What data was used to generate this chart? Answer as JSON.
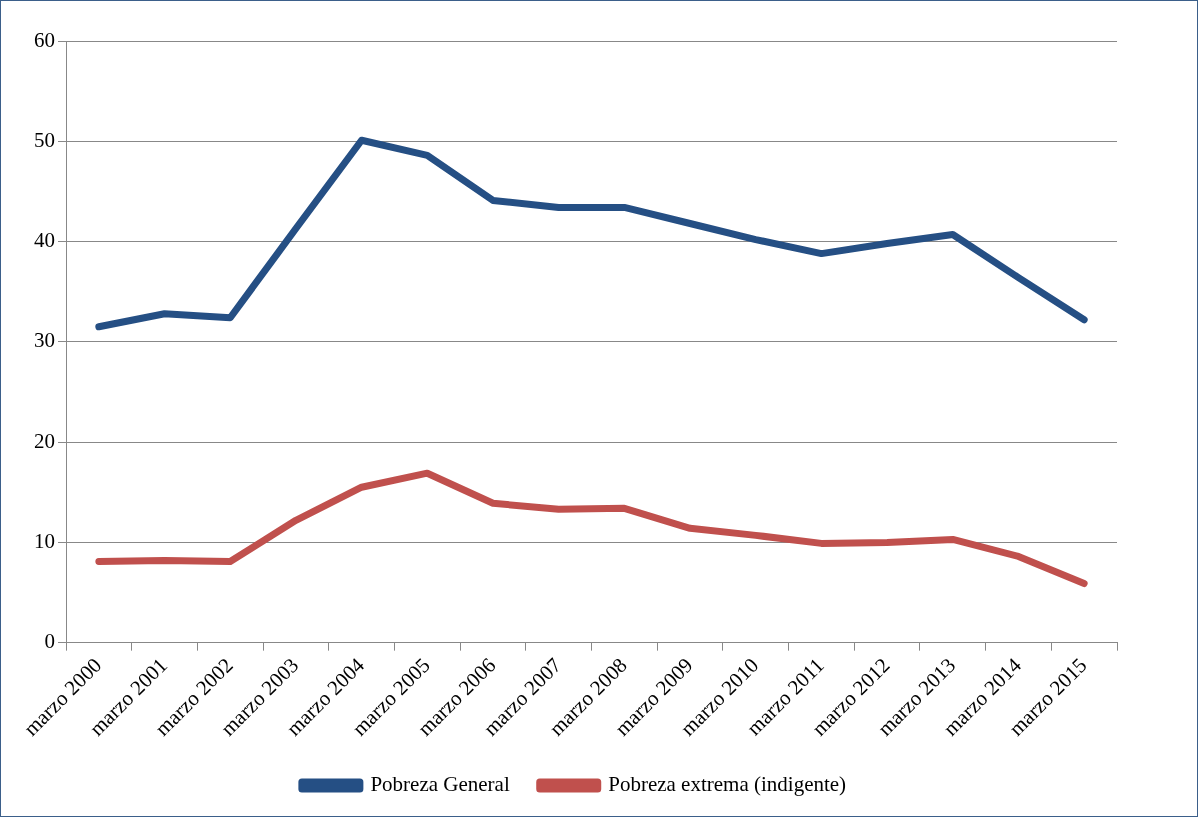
{
  "chart_data": {
    "type": "line",
    "categories": [
      "marzo 2000",
      "marzo 2001",
      "marzo 2002",
      "marzo 2003",
      "marzo 2004",
      "marzo 2005",
      "marzo 2006",
      "marzo 2007",
      "marzo 2008",
      "marzo 2009",
      "marzo 2010",
      "marzo 2011",
      "marzo 2012",
      "marzo 2013",
      "marzo 2014",
      "marzo 2015"
    ],
    "series": [
      {
        "name": "Pobreza General",
        "color": "#254f84",
        "values": [
          31.5,
          32.8,
          32.4,
          41.3,
          50.1,
          48.6,
          44.1,
          43.4,
          43.4,
          41.8,
          40.2,
          38.8,
          39.8,
          40.7,
          36.4,
          32.2
        ]
      },
      {
        "name": "Pobreza extrema (indigente)",
        "color": "#c0504d",
        "values": [
          8.1,
          8.2,
          8.1,
          12.2,
          15.5,
          16.9,
          13.9,
          13.3,
          13.4,
          11.4,
          10.7,
          9.9,
          10.0,
          10.3,
          8.6,
          5.9
        ]
      }
    ],
    "ylim": [
      0,
      60
    ],
    "yticks": [
      0,
      10,
      20,
      30,
      40,
      50,
      60
    ],
    "grid": "y",
    "legend": "bottom",
    "marker": "none",
    "line_style": "solid"
  }
}
